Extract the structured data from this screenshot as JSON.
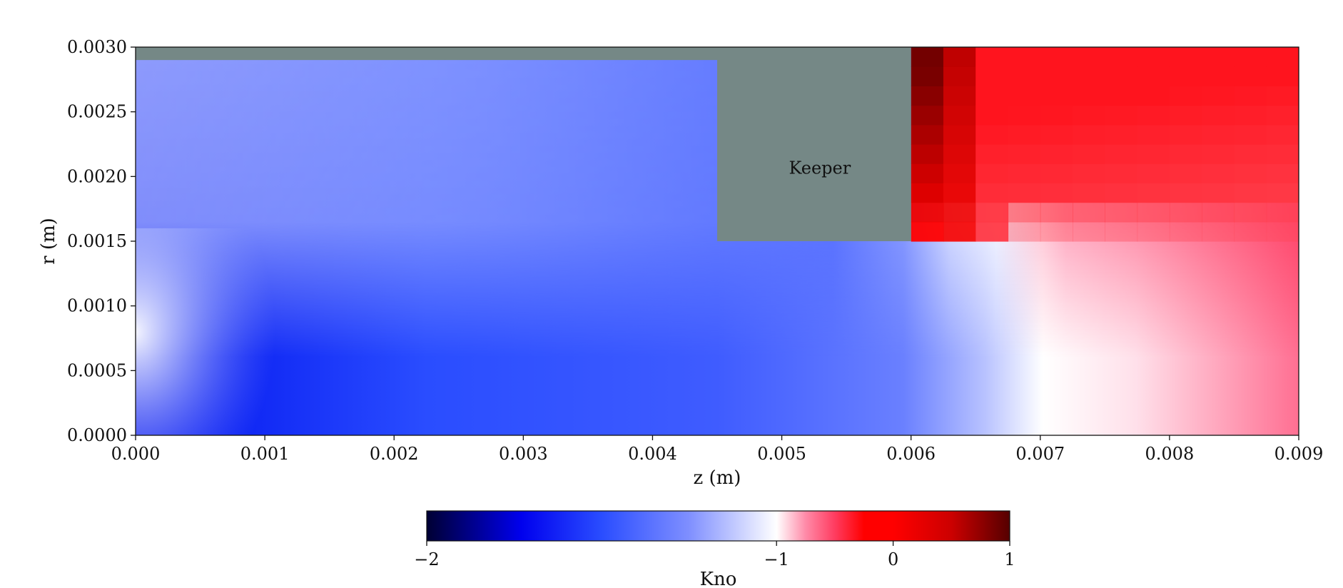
{
  "chart_data": {
    "type": "heatmap",
    "xlabel": "z (m)",
    "ylabel": "r (m)",
    "xlim": [
      0.0,
      0.009
    ],
    "ylim": [
      0.0,
      0.003
    ],
    "x_ticks": [
      "0.000",
      "0.001",
      "0.002",
      "0.003",
      "0.004",
      "0.005",
      "0.006",
      "0.007",
      "0.008",
      "0.009"
    ],
    "x_tick_values": [
      0.0,
      0.001,
      0.002,
      0.003,
      0.004,
      0.005,
      0.006,
      0.007,
      0.008,
      0.009
    ],
    "y_ticks": [
      "0.0000",
      "0.0005",
      "0.0010",
      "0.0015",
      "0.0020",
      "0.0025",
      "0.0030"
    ],
    "y_tick_values": [
      0.0,
      0.0005,
      0.001,
      0.0015,
      0.002,
      0.0025,
      0.003
    ],
    "annotation": "Keeper",
    "keeper_region": {
      "z_min": 0.0045,
      "z_max": 0.006,
      "r_min": 0.0015,
      "r_max": 0.003
    },
    "wall_band": {
      "z_min": 0.0,
      "z_max": 0.0045,
      "r_min": 0.0029,
      "r_max": 0.003
    },
    "geometry_color": "#758886",
    "colorbar": {
      "label": "Kno",
      "range": [
        -2,
        1
      ],
      "ticks": [
        "−2",
        "−1",
        "0",
        "1"
      ],
      "tick_values": [
        -2,
        -1,
        0,
        1
      ],
      "colormap": "bwr-like",
      "stops": [
        {
          "value": -2.0,
          "color": "#000033"
        },
        {
          "value": -1.73,
          "color": "#0000ee"
        },
        {
          "value": -1.5,
          "color": "#2a4dff"
        },
        {
          "value": -1.25,
          "color": "#7f8fff"
        },
        {
          "value": -1.0,
          "color": "#ffffff"
        },
        {
          "value": -0.75,
          "color": "#ff8aa8"
        },
        {
          "value": -0.5,
          "color": "#ff3c60"
        },
        {
          "value": -0.25,
          "color": "#ff0000"
        },
        {
          "value": 0.0,
          "color": "#ff0000"
        },
        {
          "value": 0.5,
          "color": "#cc0000"
        },
        {
          "value": 1.0,
          "color": "#550000"
        }
      ]
    }
  }
}
